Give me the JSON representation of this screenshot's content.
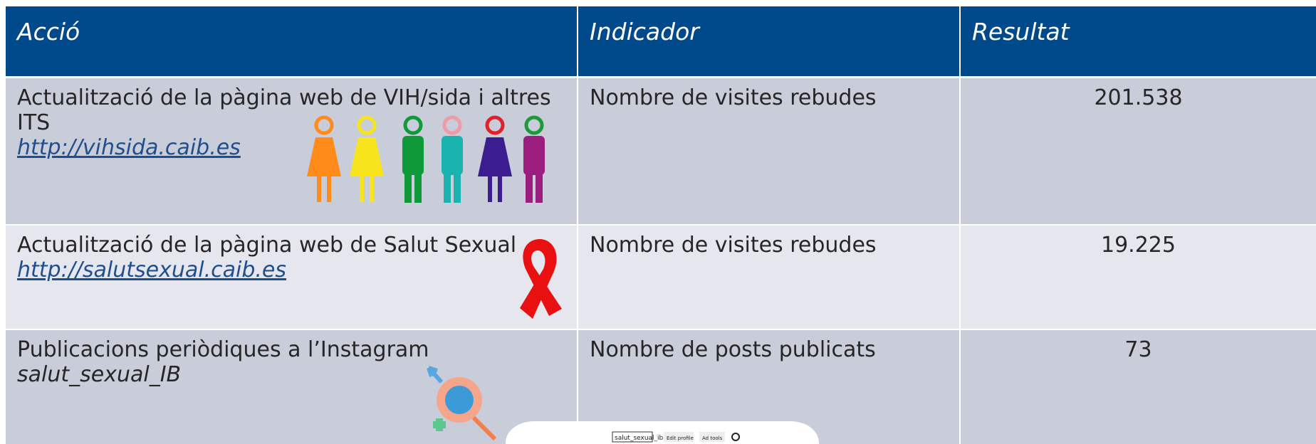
{
  "table": {
    "header": [
      "Acció",
      "Indicador",
      "Resultat"
    ],
    "rows": [
      {
        "action": "Actualització de la pàgina web de VIH/sida i altres ITS",
        "link": "http://vihsida.caib.es",
        "indicator": "Nombre de visites rebudes",
        "result": "201.538"
      },
      {
        "action": "Actualització de la pàgina web de Salut Sexual",
        "link": "http://salutsexual.caib.es",
        "indicator": "Nombre de visites rebudes",
        "result": "19.225"
      },
      {
        "action": "Publicacions periòdiques a l’Instagram",
        "link": "salut_sexual_IB",
        "indicator": "Nombre de posts publicats",
        "result": "73"
      }
    ]
  },
  "screenshot": {
    "username": "salut_sexual_ib",
    "buttons": [
      "Edit profile",
      "Ad tools"
    ]
  }
}
